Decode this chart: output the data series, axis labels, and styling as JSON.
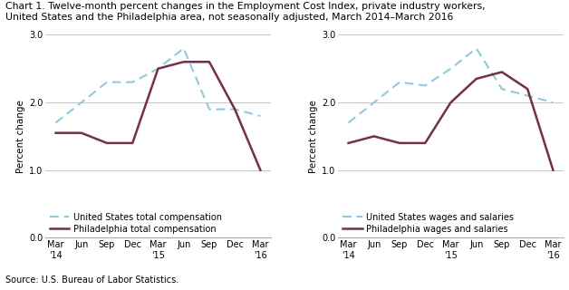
{
  "title_line1": "Chart 1. Twelve-month percent changes in the Employment Cost Index, private industry workers,",
  "title_line2": "United States and the Philadelphia area, not seasonally adjusted, March 2014–March 2016",
  "source": "Source: U.S. Bureau of Labor Statistics.",
  "x_labels": [
    "Mar\n'14",
    "Jun",
    "Sep",
    "Dec",
    "Mar\n'15",
    "Jun",
    "Sep",
    "Dec",
    "Mar\n'16"
  ],
  "ylabel": "Percent change",
  "ylim": [
    0.0,
    3.0
  ],
  "yticks": [
    0.0,
    1.0,
    2.0,
    3.0
  ],
  "chart1": {
    "us_total": [
      1.7,
      2.0,
      2.3,
      2.3,
      2.5,
      2.8,
      1.9,
      1.9,
      1.8
    ],
    "philly_total": [
      1.55,
      1.55,
      1.4,
      1.4,
      2.5,
      2.6,
      2.6,
      1.9,
      1.0
    ],
    "us_label": "United States total compensation",
    "philly_label": "Philadelphia total compensation"
  },
  "chart2": {
    "us_wages": [
      1.7,
      2.0,
      2.3,
      2.25,
      2.5,
      2.8,
      2.2,
      2.1,
      2.0
    ],
    "philly_wages": [
      1.4,
      1.5,
      1.4,
      1.4,
      2.0,
      2.35,
      2.45,
      2.2,
      1.0
    ],
    "us_label": "United States wages and salaries",
    "philly_label": "Philadelphia wages and salaries"
  },
  "us_color": "#85C8E8",
  "philly_color": "#7B2D42",
  "us_linewidth": 1.4,
  "philly_linewidth": 1.8,
  "grid_color": "#bbbbbb",
  "title_fontsize": 7.8,
  "axis_label_fontsize": 7.5,
  "tick_fontsize": 7.0,
  "legend_fontsize": 7.0,
  "source_fontsize": 7.0
}
